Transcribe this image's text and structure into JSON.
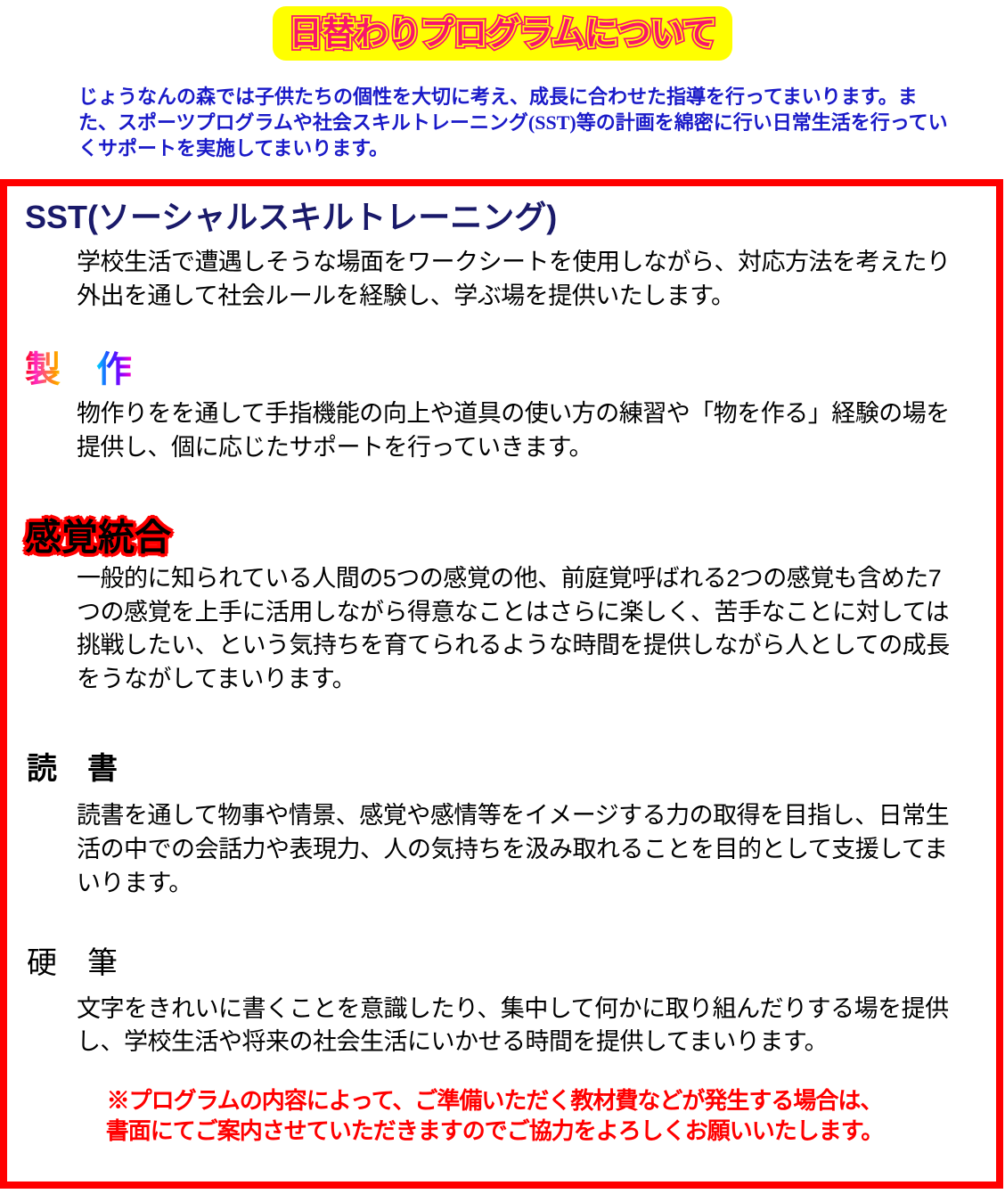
{
  "banner": {
    "title": "日替わりプログラムについて",
    "bg_color": "#ffff00",
    "text_color": "#f8146e"
  },
  "intro": {
    "text": "じょうなんの森では子供たちの個性を大切に考え、成長に合わせた指導を行ってまいります。また、スポーツプログラムや社会スキルトレーニング(SST)等の計画を綿密に行い日常生活を行っていくサポートを実施してまいります。",
    "text_color": "#1a1ac8"
  },
  "program_box": {
    "border_color": "#ff0000",
    "sections": {
      "sst": {
        "heading": "SST(ソーシャルスキルトレーニング)",
        "heading_color": "#1a1a6a",
        "body": "学校生活で遭遇しそうな場面をワークシートを使用しながら、対応方法を考えたり外出を通して社会ルールを経験し、学ぶ場を提供いたします。"
      },
      "seisaku": {
        "heading": "製　作",
        "heading_style": "rainbow-gradient",
        "body": "物作りをを通して手指機能の向上や道具の使い方の練習や「物を作る」経験の場を提供し、個に応じたサポートを行っていきます。"
      },
      "kankaku_togo": {
        "heading": "感覚統合",
        "heading_style": "black-with-red-outline",
        "body": "一般的に知られている人間の5つの感覚の他、前庭覚呼ばれる2つの感覚も含めた7つの感覚を上手に活用しながら得意なことはさらに楽しく、苦手なことに対しては挑戦したい、という気持ちを育てられるような時間を提供しながら人としての成長をうながしてまいります。"
      },
      "dokusho": {
        "heading": "読　書",
        "heading_color": "#000000",
        "body": "読書を通して物事や情景、感覚や感情等をイメージする力の取得を目指し、日常生活の中での会話力や表現力、人の気持ちを汲み取れることを目的として支援してまいります。"
      },
      "kohitsu": {
        "heading": "硬　筆",
        "heading_color": "#000000",
        "body": "文字をきれいに書くことを意識したり、集中して何かに取り組んだりする場を提供し、学校生活や将来の社会生活にいかせる時間を提供してまいります。"
      }
    },
    "footer_note": {
      "line1": "※プログラムの内容によって、ご準備いただく教材費などが発生する場合は、",
      "line2": "書面にてご案内させていただきますのでご協力をよろしくお願いいたします。",
      "text_color": "#ff0000"
    }
  }
}
